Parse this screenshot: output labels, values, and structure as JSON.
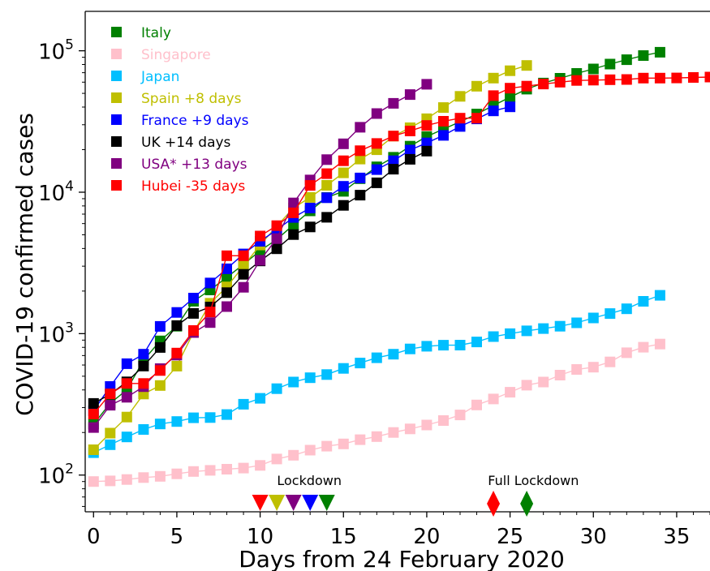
{
  "chart_data": {
    "type": "scatter",
    "xlabel": "Days from 24 February 2020",
    "ylabel": "COVID-19 confirmed cases",
    "xlim": [
      -0.5,
      37
    ],
    "ylim": [
      55,
      190000
    ],
    "yscale": "log",
    "xticks": [
      "0",
      "5",
      "10",
      "15",
      "20",
      "25",
      "30",
      "35"
    ],
    "yticks": [
      {
        "value": 100,
        "base": "10",
        "exp": "2"
      },
      {
        "value": 1000,
        "base": "10",
        "exp": "3"
      },
      {
        "value": 10000,
        "base": "10",
        "exp": "4"
      },
      {
        "value": 100000,
        "base": "10",
        "exp": "5"
      }
    ],
    "grid": false,
    "legend_position": "top-left",
    "series": [
      {
        "name": "Italy",
        "color": "#008000",
        "x": [
          0,
          1,
          2,
          3,
          4,
          5,
          6,
          7,
          8,
          9,
          10,
          11,
          12,
          13,
          14,
          15,
          16,
          17,
          18,
          19,
          20,
          21,
          22,
          23,
          24,
          25,
          26,
          27,
          28,
          29,
          30,
          31,
          32,
          33,
          34
        ],
        "y": [
          229,
          322,
          400,
          650,
          888,
          1128,
          1694,
          2036,
          2502,
          3089,
          3858,
          4636,
          5883,
          7375,
          9172,
          10149,
          12462,
          15113,
          17660,
          21157,
          24747,
          27980,
          31506,
          35713,
          41035,
          47021,
          53578,
          59138,
          63927,
          69176,
          74386,
          80539,
          86498,
          92472,
          97689
        ]
      },
      {
        "name": "Singapore",
        "color": "#ffc0cb",
        "x": [
          0,
          1,
          2,
          3,
          4,
          5,
          6,
          7,
          8,
          9,
          10,
          11,
          12,
          13,
          14,
          15,
          16,
          17,
          18,
          19,
          20,
          21,
          22,
          23,
          24,
          25,
          26,
          27,
          28,
          29,
          30,
          31,
          32,
          33,
          34
        ],
        "y": [
          90,
          91,
          93,
          96,
          98,
          102,
          106,
          108,
          110,
          112,
          117,
          130,
          138,
          150,
          160,
          166,
          178,
          187,
          200,
          212,
          226,
          243,
          266,
          313,
          345,
          385,
          432,
          455,
          509,
          558,
          579,
          631,
          733,
          802,
          844
        ]
      },
      {
        "name": "Japan",
        "color": "#00bfff",
        "x": [
          0,
          1,
          2,
          3,
          4,
          5,
          6,
          7,
          8,
          9,
          10,
          11,
          12,
          13,
          14,
          15,
          16,
          17,
          18,
          19,
          20,
          21,
          22,
          23,
          24,
          25,
          26,
          27,
          28,
          29,
          30,
          31,
          32,
          33,
          34
        ],
        "y": [
          144,
          164,
          186,
          210,
          230,
          239,
          254,
          255,
          268,
          317,
          349,
          408,
          455,
          488,
          514,
          568,
          620,
          675,
          716,
          780,
          814,
          829,
          830,
          873,
          953,
          1000,
          1046,
          1086,
          1128,
          1193,
          1291,
          1387,
          1499,
          1693,
          1866
        ]
      },
      {
        "name": "Spain +8 days",
        "color": "#bfbf00",
        "x": [
          0,
          1,
          2,
          3,
          4,
          5,
          6,
          7,
          8,
          9,
          10,
          11,
          12,
          13,
          14,
          15,
          16,
          17,
          18,
          19,
          20,
          21,
          22,
          23,
          24,
          25,
          26
        ],
        "y": [
          151,
          198,
          257,
          374,
          430,
          589,
          1024,
          1639,
          2140,
          3004,
          4231,
          5753,
          7753,
          9191,
          11178,
          13716,
          17147,
          19980,
          24926,
          28572,
          33089,
          39673,
          47610,
          56188,
          64059,
          72248,
          78797
        ]
      },
      {
        "name": "France +9 days",
        "color": "#0000ff",
        "x": [
          0,
          1,
          2,
          3,
          4,
          5,
          6,
          7,
          8,
          9,
          10,
          11,
          12,
          13,
          14,
          15,
          16,
          17,
          18,
          19,
          20,
          21,
          22,
          23,
          24,
          25
        ],
        "y": [
          285,
          423,
          613,
          716,
          1126,
          1412,
          1784,
          2281,
          2876,
          3661,
          4499,
          5423,
          6633,
          7730,
          9134,
          11010,
          12612,
          14459,
          16689,
          19856,
          22304,
          25233,
          29155,
          32964,
          37575,
          40174
        ]
      },
      {
        "name": "UK +14 days",
        "color": "#000000",
        "x": [
          0,
          1,
          2,
          3,
          4,
          5,
          6,
          7,
          8,
          9,
          10,
          11,
          12,
          13,
          14,
          15,
          16,
          17,
          18,
          19,
          20
        ],
        "y": [
          321,
          373,
          456,
          590,
          798,
          1140,
          1391,
          1543,
          1950,
          2626,
          3269,
          3983,
          5018,
          5683,
          6650,
          8077,
          9529,
          11658,
          14543,
          17089,
          19522
        ]
      },
      {
        "name": "USA* +13 days",
        "color": "#800080",
        "x": [
          0,
          1,
          2,
          3,
          4,
          5,
          6,
          7,
          8,
          9,
          10,
          11,
          12,
          13,
          14,
          15,
          16,
          17,
          18,
          19,
          20
        ],
        "y": [
          217,
          312,
          355,
          422,
          566,
          705,
          1018,
          1197,
          1554,
          2128,
          3300,
          4700,
          8400,
          12200,
          17000,
          22000,
          28800,
          36000,
          42500,
          49000,
          58000
        ]
      },
      {
        "name": "Hubei -35 days",
        "color": "#ff0000",
        "x": [
          0,
          1,
          2,
          3,
          4,
          5,
          6,
          7,
          8,
          9,
          10,
          11,
          12,
          13,
          14,
          15,
          16,
          17,
          18,
          19,
          20,
          21,
          22,
          23,
          24,
          25,
          26,
          27,
          28,
          29,
          30,
          31,
          32,
          33,
          34,
          35,
          36,
          37
        ],
        "y": [
          270,
          375,
          444,
          444,
          549,
          729,
          1052,
          1423,
          3554,
          3554,
          4903,
          5806,
          7153,
          11177,
          13522,
          16678,
          19665,
          22112,
          24953,
          27100,
          29631,
          31728,
          33366,
          33366,
          48206,
          54406,
          56249,
          58182,
          59989,
          61682,
          62031,
          62442,
          62662,
          64084,
          64084,
          64287,
          64786,
          65187
        ]
      }
    ],
    "lockdown_label": "Lockdown",
    "lockdown_days": [
      10,
      11,
      12,
      13,
      14
    ],
    "lockdown_colors": [
      "#ff0000",
      "#bfbf00",
      "#800080",
      "#0000ff",
      "#008000"
    ],
    "full_lockdown_label": "Full Lockdown",
    "full_lockdown_days": [
      24,
      26
    ],
    "full_lockdown_colors": [
      "#ff0000",
      "#008000"
    ]
  }
}
